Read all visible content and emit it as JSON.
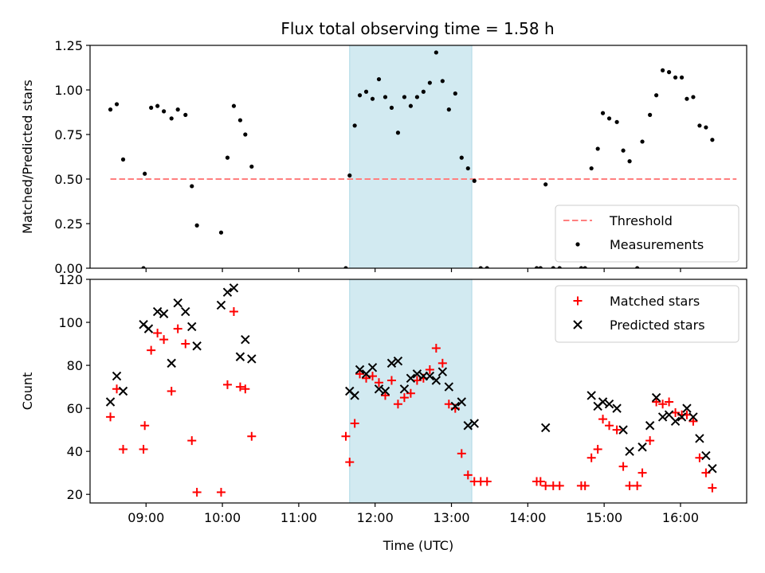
{
  "colors": {
    "threshold": "#ff7f7f",
    "measurement": "#000000",
    "matched": "#ff0000",
    "predicted": "#000000",
    "shade": "#add8e6"
  },
  "chart_data": [
    {
      "type": "scatter",
      "title": "Flux total observing time = 1.58 h",
      "xlabel": "",
      "ylabel": "Matched/Predicted stars",
      "xlim": [
        "08:16",
        "16:52"
      ],
      "ylim": [
        0,
        1.25
      ],
      "y_ticks": [
        "0.00",
        "0.25",
        "0.50",
        "0.75",
        "1.00",
        "1.25"
      ],
      "shaded_region": [
        "11:40",
        "13:16"
      ],
      "legend_position": "lower right",
      "threshold": {
        "name": "Threshold",
        "value": 0.5,
        "x_range": [
          "08:32",
          "16:44"
        ]
      },
      "series": [
        {
          "name": "Measurements",
          "marker": "dot",
          "points": [
            [
              "08:32",
              0.89
            ],
            [
              "08:37",
              0.92
            ],
            [
              "08:42",
              0.61
            ],
            [
              "08:58",
              0.0
            ],
            [
              "08:59",
              0.53
            ],
            [
              "09:04",
              0.9
            ],
            [
              "09:09",
              0.91
            ],
            [
              "09:14",
              0.88
            ],
            [
              "09:20",
              0.84
            ],
            [
              "09:25",
              0.89
            ],
            [
              "09:31",
              0.86
            ],
            [
              "09:36",
              0.46
            ],
            [
              "09:40",
              0.24
            ],
            [
              "09:59",
              0.2
            ],
            [
              "10:04",
              0.62
            ],
            [
              "10:09",
              0.91
            ],
            [
              "10:14",
              0.83
            ],
            [
              "10:18",
              0.75
            ],
            [
              "10:23",
              0.57
            ],
            [
              "11:37",
              0.0
            ],
            [
              "11:40",
              0.52
            ],
            [
              "11:44",
              0.8
            ],
            [
              "11:48",
              0.97
            ],
            [
              "11:53",
              0.99
            ],
            [
              "11:58",
              0.95
            ],
            [
              "12:03",
              1.06
            ],
            [
              "12:08",
              0.96
            ],
            [
              "12:13",
              0.9
            ],
            [
              "12:18",
              0.76
            ],
            [
              "12:23",
              0.96
            ],
            [
              "12:28",
              0.91
            ],
            [
              "12:33",
              0.96
            ],
            [
              "12:38",
              0.99
            ],
            [
              "12:43",
              1.04
            ],
            [
              "12:48",
              1.21
            ],
            [
              "12:53",
              1.05
            ],
            [
              "12:58",
              0.89
            ],
            [
              "13:03",
              0.98
            ],
            [
              "13:08",
              0.62
            ],
            [
              "13:13",
              0.56
            ],
            [
              "13:18",
              0.49
            ],
            [
              "13:23",
              0.0
            ],
            [
              "13:28",
              0.0
            ],
            [
              "14:07",
              0.0
            ],
            [
              "14:10",
              0.0
            ],
            [
              "14:14",
              0.47
            ],
            [
              "14:20",
              0.0
            ],
            [
              "14:25",
              0.0
            ],
            [
              "14:42",
              0.0
            ],
            [
              "14:45",
              0.0
            ],
            [
              "14:50",
              0.56
            ],
            [
              "14:55",
              0.67
            ],
            [
              "14:59",
              0.87
            ],
            [
              "15:04",
              0.84
            ],
            [
              "15:10",
              0.82
            ],
            [
              "15:15",
              0.66
            ],
            [
              "15:20",
              0.6
            ],
            [
              "15:26",
              0.0
            ],
            [
              "15:30",
              0.71
            ],
            [
              "15:36",
              0.86
            ],
            [
              "15:41",
              0.97
            ],
            [
              "15:46",
              1.11
            ],
            [
              "15:51",
              1.1
            ],
            [
              "15:56",
              1.07
            ],
            [
              "16:01",
              1.07
            ],
            [
              "16:05",
              0.95
            ],
            [
              "16:10",
              0.96
            ],
            [
              "16:15",
              0.8
            ],
            [
              "16:20",
              0.79
            ],
            [
              "16:25",
              0.72
            ]
          ]
        }
      ]
    },
    {
      "type": "scatter",
      "title": "",
      "xlabel": "Time (UTC)",
      "ylabel": "Count",
      "xlim": [
        "08:16",
        "16:52"
      ],
      "ylim": [
        16,
        120
      ],
      "x_ticks": [
        "09:00",
        "10:00",
        "11:00",
        "12:00",
        "13:00",
        "14:00",
        "15:00",
        "16:00"
      ],
      "y_ticks": [
        "20",
        "40",
        "60",
        "80",
        "100",
        "120"
      ],
      "shaded_region": [
        "11:40",
        "13:16"
      ],
      "legend_position": "upper right",
      "series": [
        {
          "name": "Matched stars",
          "marker": "plus",
          "points": [
            [
              "08:32",
              56
            ],
            [
              "08:37",
              69
            ],
            [
              "08:42",
              41
            ],
            [
              "08:58",
              41
            ],
            [
              "08:59",
              52
            ],
            [
              "09:04",
              87
            ],
            [
              "09:09",
              95
            ],
            [
              "09:14",
              92
            ],
            [
              "09:20",
              68
            ],
            [
              "09:25",
              97
            ],
            [
              "09:31",
              90
            ],
            [
              "09:36",
              45
            ],
            [
              "09:40",
              21
            ],
            [
              "09:59",
              21
            ],
            [
              "10:04",
              71
            ],
            [
              "10:09",
              105
            ],
            [
              "10:14",
              70
            ],
            [
              "10:18",
              69
            ],
            [
              "10:23",
              47
            ],
            [
              "11:37",
              47
            ],
            [
              "11:40",
              35
            ],
            [
              "11:44",
              53
            ],
            [
              "11:48",
              76
            ],
            [
              "11:53",
              74
            ],
            [
              "11:58",
              75
            ],
            [
              "12:03",
              72
            ],
            [
              "12:08",
              66
            ],
            [
              "12:13",
              73
            ],
            [
              "12:18",
              62
            ],
            [
              "12:23",
              65
            ],
            [
              "12:28",
              67
            ],
            [
              "12:33",
              73
            ],
            [
              "12:38",
              74
            ],
            [
              "12:43",
              78
            ],
            [
              "12:48",
              88
            ],
            [
              "12:53",
              81
            ],
            [
              "12:58",
              62
            ],
            [
              "13:03",
              60
            ],
            [
              "13:08",
              39
            ],
            [
              "13:13",
              29
            ],
            [
              "13:18",
              26
            ],
            [
              "13:23",
              26
            ],
            [
              "13:28",
              26
            ],
            [
              "14:07",
              26
            ],
            [
              "14:10",
              26
            ],
            [
              "14:14",
              24
            ],
            [
              "14:20",
              24
            ],
            [
              "14:25",
              24
            ],
            [
              "14:42",
              24
            ],
            [
              "14:45",
              24
            ],
            [
              "14:50",
              37
            ],
            [
              "14:55",
              41
            ],
            [
              "14:59",
              55
            ],
            [
              "15:04",
              52
            ],
            [
              "15:10",
              50
            ],
            [
              "15:15",
              33
            ],
            [
              "15:20",
              24
            ],
            [
              "15:26",
              24
            ],
            [
              "15:30",
              30
            ],
            [
              "15:36",
              45
            ],
            [
              "15:41",
              63
            ],
            [
              "15:46",
              62
            ],
            [
              "15:51",
              63
            ],
            [
              "15:56",
              58
            ],
            [
              "16:01",
              57
            ],
            [
              "16:05",
              57
            ],
            [
              "16:10",
              54
            ],
            [
              "16:15",
              37
            ],
            [
              "16:20",
              30
            ],
            [
              "16:25",
              23
            ]
          ]
        },
        {
          "name": "Predicted stars",
          "marker": "x",
          "points": [
            [
              "08:32",
              63
            ],
            [
              "08:37",
              75
            ],
            [
              "08:42",
              68
            ],
            [
              "08:58",
              99
            ],
            [
              "09:02",
              97
            ],
            [
              "09:09",
              105
            ],
            [
              "09:14",
              104
            ],
            [
              "09:20",
              81
            ],
            [
              "09:25",
              109
            ],
            [
              "09:31",
              105
            ],
            [
              "09:36",
              98
            ],
            [
              "09:40",
              89
            ],
            [
              "09:59",
              108
            ],
            [
              "10:04",
              114
            ],
            [
              "10:09",
              116
            ],
            [
              "10:14",
              84
            ],
            [
              "10:18",
              92
            ],
            [
              "10:23",
              83
            ],
            [
              "11:40",
              68
            ],
            [
              "11:44",
              66
            ],
            [
              "11:48",
              78
            ],
            [
              "11:53",
              76
            ],
            [
              "11:58",
              79
            ],
            [
              "12:03",
              69
            ],
            [
              "12:08",
              68
            ],
            [
              "12:13",
              81
            ],
            [
              "12:18",
              82
            ],
            [
              "12:23",
              69
            ],
            [
              "12:28",
              74
            ],
            [
              "12:33",
              76
            ],
            [
              "12:38",
              75
            ],
            [
              "12:43",
              75
            ],
            [
              "12:48",
              73
            ],
            [
              "12:53",
              77
            ],
            [
              "12:58",
              70
            ],
            [
              "13:03",
              61
            ],
            [
              "13:08",
              63
            ],
            [
              "13:13",
              52
            ],
            [
              "13:18",
              53
            ],
            [
              "14:14",
              51
            ],
            [
              "14:50",
              66
            ],
            [
              "14:55",
              61
            ],
            [
              "14:59",
              63
            ],
            [
              "15:04",
              62
            ],
            [
              "15:10",
              60
            ],
            [
              "15:15",
              50
            ],
            [
              "15:20",
              40
            ],
            [
              "15:30",
              42
            ],
            [
              "15:36",
              52
            ],
            [
              "15:41",
              65
            ],
            [
              "15:46",
              56
            ],
            [
              "15:51",
              57
            ],
            [
              "15:56",
              54
            ],
            [
              "16:01",
              56
            ],
            [
              "16:05",
              60
            ],
            [
              "16:10",
              56
            ],
            [
              "16:15",
              46
            ],
            [
              "16:20",
              38
            ],
            [
              "16:25",
              32
            ]
          ]
        }
      ]
    }
  ]
}
